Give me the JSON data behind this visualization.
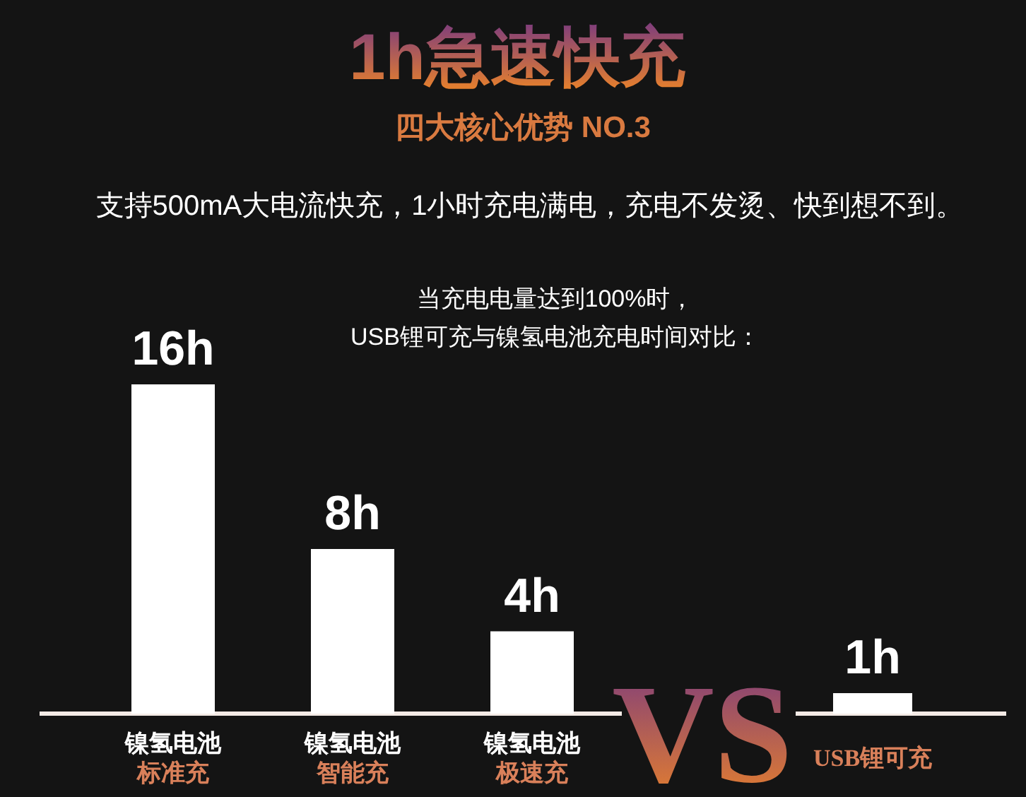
{
  "chart_data": [
    {
      "type": "bar",
      "title": "1h急速快充",
      "subtitle": "四大核心优势 NO.3",
      "annotations": [
        "支持500mA大电流快充，1小时充电满电，充电不发烫、快到想不到。",
        "当充电电量达到100%时，\nUSB锂可充与镍氢电池充电时间对比："
      ],
      "categories": [
        "镍氢电池标准充",
        "镍氢电池智能充",
        "镍氢电池极速充"
      ],
      "values": [
        16,
        8,
        4
      ],
      "color": "#ffffff",
      "value_labels": [
        "16h",
        "8h",
        "4h"
      ]
    },
    {
      "type": "bar",
      "annotations": [
        "VS"
      ],
      "categories": [
        "USB锂可充"
      ],
      "values": [
        1
      ],
      "color": "#ffffff",
      "value_labels": [
        "1h"
      ]
    }
  ]
}
